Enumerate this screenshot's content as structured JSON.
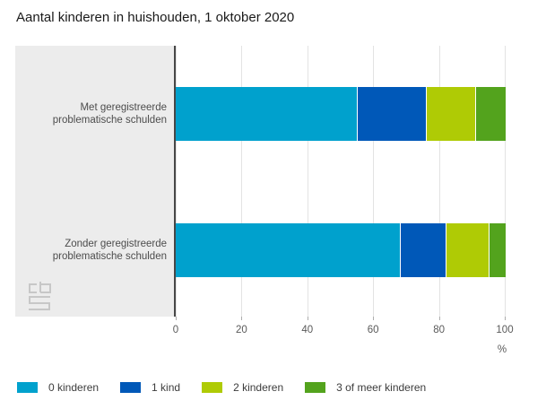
{
  "title": "Aantal kinderen in huishouden, 1 oktober 2020",
  "chart_data": {
    "type": "bar",
    "orientation": "horizontal",
    "stacked": true,
    "title": "Aantal kinderen in huishouden, 1 oktober 2020",
    "categories": [
      "Met geregistreerde problematische schulden",
      "Zonder geregistreerde problematische schulden"
    ],
    "series": [
      {
        "name": "0 kinderen",
        "color": "#00a1cd",
        "values": [
          55,
          68
        ]
      },
      {
        "name": "1 kind",
        "color": "#0058b8",
        "values": [
          21,
          14
        ]
      },
      {
        "name": "2 kinderen",
        "color": "#afcb05",
        "values": [
          15,
          13
        ]
      },
      {
        "name": "3 of meer kinderen",
        "color": "#53a31d",
        "values": [
          9,
          5
        ]
      }
    ],
    "xlabel": "%",
    "x_ticks": [
      0,
      20,
      40,
      60,
      80,
      100
    ],
    "xlim": [
      0,
      100
    ],
    "grid": true,
    "legend_position": "bottom",
    "branding": "cbs-logo"
  }
}
